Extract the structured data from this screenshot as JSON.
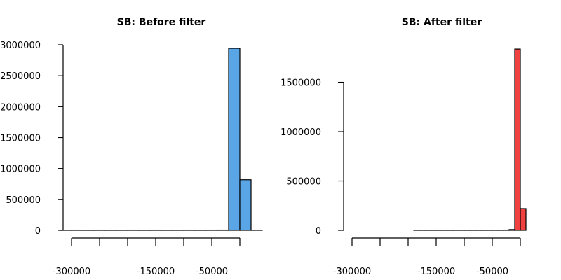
{
  "chart_data": [
    {
      "type": "histogram",
      "title": "SB: Before filter",
      "color": "#5aa5e6",
      "bins": [
        -320000,
        -300000,
        -280000,
        -260000,
        -240000,
        -220000,
        -200000,
        -180000,
        -160000,
        -140000,
        -120000,
        -100000,
        -80000,
        -60000,
        -40000,
        -20000,
        0,
        20000,
        40000
      ],
      "values": [
        500,
        500,
        500,
        500,
        500,
        500,
        500,
        500,
        500,
        500,
        500,
        500,
        500,
        500,
        5000,
        2943000,
        818000,
        2000
      ],
      "xlim": [
        -320000,
        40000
      ],
      "ylim": [
        0,
        3000000
      ],
      "xticks": [
        -300000,
        {
          "value": -250000,
          "label": null
        },
        {
          "value": -200000,
          "label": null
        },
        -150000,
        {
          "value": -100000,
          "label": null
        },
        -50000,
        {
          "value": 0,
          "label": null
        }
      ],
      "yticks": [
        0,
        500000,
        1000000,
        1500000,
        2000000,
        2500000,
        3000000
      ]
    },
    {
      "type": "histogram",
      "title": "SB: After filter",
      "color": "#f04040",
      "bins": [
        -190000,
        -180000,
        -170000,
        -160000,
        -150000,
        -140000,
        -130000,
        -120000,
        -110000,
        -100000,
        -90000,
        -80000,
        -70000,
        -60000,
        -50000,
        -40000,
        -30000,
        -20000,
        -10000,
        0,
        10000
      ],
      "values": [
        300,
        300,
        300,
        300,
        300,
        300,
        300,
        300,
        300,
        300,
        300,
        300,
        300,
        300,
        300,
        300,
        3000,
        8000,
        1837000,
        220000
      ],
      "xlim": [
        -320000,
        40000
      ],
      "ylim": [
        0,
        1880000
      ],
      "xticks": [
        -300000,
        {
          "value": -250000,
          "label": null
        },
        {
          "value": -200000,
          "label": null
        },
        -150000,
        {
          "value": -100000,
          "label": null
        },
        -50000,
        {
          "value": 0,
          "label": null
        }
      ],
      "yticks": [
        0,
        500000,
        1000000,
        1500000
      ]
    }
  ]
}
